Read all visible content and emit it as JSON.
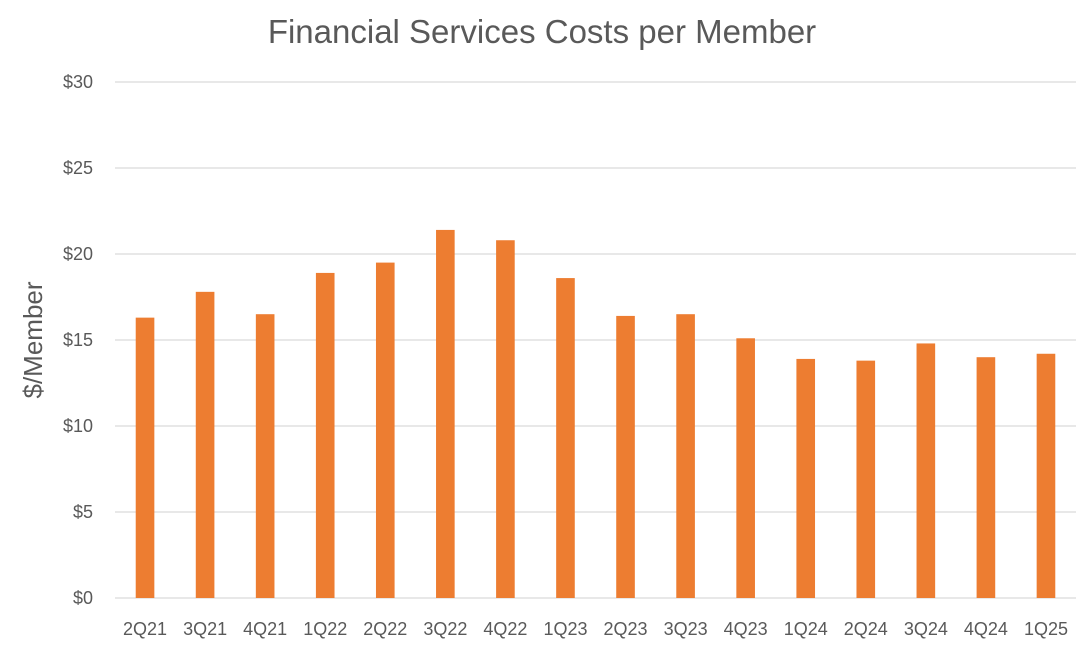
{
  "chart_data": {
    "type": "bar",
    "title": "Financial Services Costs per Member",
    "xlabel": "",
    "ylabel": "$/Member",
    "categories": [
      "2Q21",
      "3Q21",
      "4Q21",
      "1Q22",
      "2Q22",
      "3Q22",
      "4Q22",
      "1Q23",
      "2Q23",
      "3Q23",
      "4Q23",
      "1Q24",
      "2Q24",
      "3Q24",
      "4Q24",
      "1Q25"
    ],
    "values": [
      16.3,
      17.8,
      16.5,
      18.9,
      19.5,
      21.4,
      20.8,
      18.6,
      16.4,
      16.5,
      15.1,
      13.9,
      13.8,
      14.8,
      14.0,
      14.2
    ],
    "ylim": [
      0,
      30
    ],
    "yticks": [
      0,
      5,
      10,
      15,
      20,
      25,
      30
    ],
    "ytick_labels": [
      "$0",
      "$5",
      "$10",
      "$15",
      "$20",
      "$25",
      "$30"
    ],
    "grid": true,
    "legend": "none",
    "bar_color": "#ed7d31"
  }
}
